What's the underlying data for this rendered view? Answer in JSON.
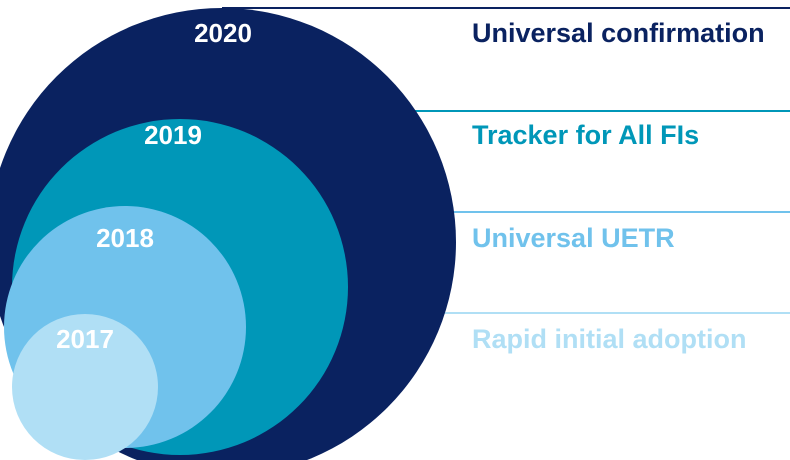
{
  "stages": [
    {
      "year": "2020",
      "label": "Universal confirmation",
      "circle_color": "#0a2260",
      "text_color": "#0a2260",
      "line_color": "#0a2260"
    },
    {
      "year": "2019",
      "label": "Tracker for All FIs",
      "circle_color": "#0097b8",
      "text_color": "#0097b8",
      "line_color": "#0097b8"
    },
    {
      "year": "2018",
      "label": "Universal UETR",
      "circle_color": "#70c2ec",
      "text_color": "#70c2ec",
      "line_color": "#70c2ec"
    },
    {
      "year": "2017",
      "label": "Rapid initial adoption",
      "circle_color": "#b0dff5",
      "text_color": "#b0dff5",
      "line_color": "#b0dff5"
    }
  ]
}
